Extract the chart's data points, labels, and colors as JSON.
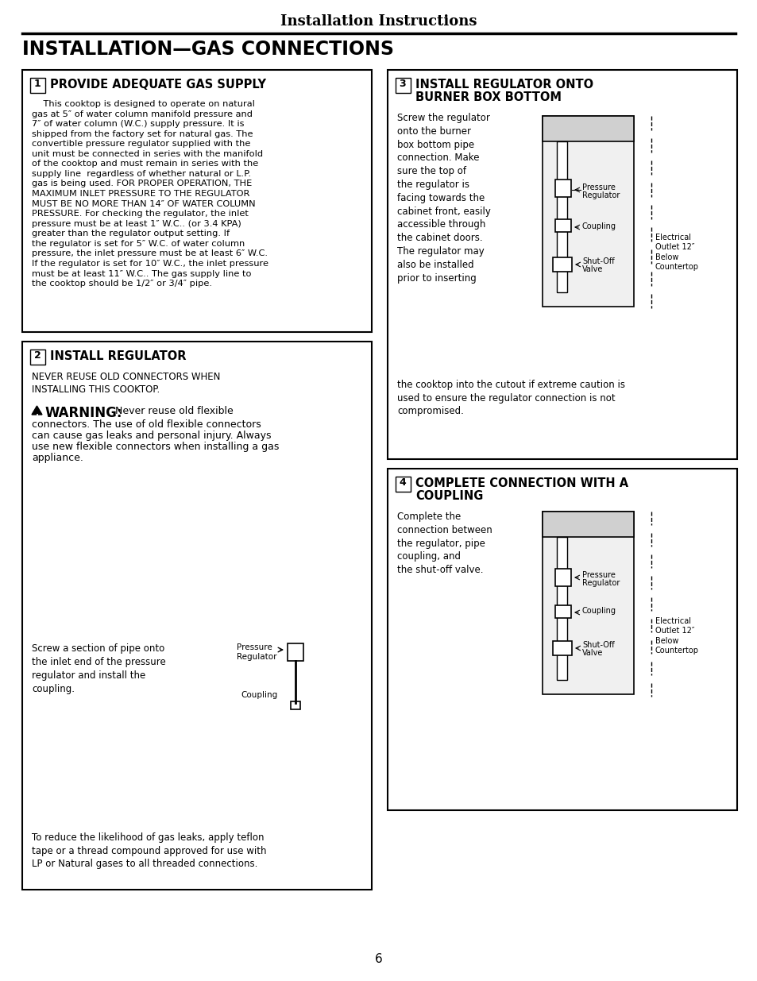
{
  "page_title": "Installation Instructions",
  "section_title": "INSTALLATION—GAS CONNECTIONS",
  "background_color": "#ffffff",
  "text_color": "#000000",
  "box1_number": "1",
  "box1_title": "PROVIDE ADEQUATE GAS SUPPLY",
  "box1_body": "    This cooktop is designed to operate on natural\ngas at 5″ of water column manifold pressure and\n7″ of water column (W.C.) supply pressure. It is\nshipped from the factory set for natural gas. The\nconvertible pressure regulator supplied with the\nunit must be connected in series with the manifold\nof the cooktop and must remain in series with the\nsupply line  regardless of whether natural or L.P.\ngas is being used. FOR PROPER OPERATION, THE\nMAXIMUM INLET PRESSURE TO THE REGULATOR\nMUST BE NO MORE THAN 14″ OF WATER COLUMN\nPRESSURE. For checking the regulator, the inlet\npressure must be at least 1″ W.C.. (or 3.4 KPA)\ngreater than the regulator output setting. If\nthe regulator is set for 5″ W.C. of water column\npressure, the inlet pressure must be at least 6″ W.C.\nIf the regulator is set for 10″ W.C., the inlet pressure\nmust be at least 11″ W.C.. The gas supply line to\nthe cooktop should be 1/2″ or 3/4″ pipe.",
  "box2_number": "2",
  "box2_title": "INSTALL REGULATOR",
  "box2_sub": "NEVER REUSE OLD CONNECTORS WHEN\nINSTALLING THIS COOKTOP.",
  "box2_screw_text": "Screw a section of pipe onto\nthe inlet end of the pressure\nregulator and install the\ncoupling.",
  "box2_bottom": "To reduce the likelihood of gas leaks, apply teflon\ntape or a thread compound approved for use with\nLP or Natural gases to all threaded connections.",
  "box3_number": "3",
  "box3_title1": "INSTALL REGULATOR ONTO",
  "box3_title2": "BURNER BOX BOTTOM",
  "box3_body": "Screw the regulator\nonto the burner\nbox bottom pipe\nconnection. Make\nsure the top of\nthe regulator is\nfacing towards the\ncabinet front, easily\naccessible through\nthe cabinet doors.\nThe regulator may\nalso be installed\nprior to inserting",
  "box3_body2": "the cooktop into the cutout if extreme caution is\nused to ensure the regulator connection is not\ncompromised.",
  "box4_number": "4",
  "box4_title1": "COMPLETE CONNECTION WITH A",
  "box4_title2": "COUPLING",
  "box4_body": "Complete the\nconnection between\nthe regulator, pipe\ncoupling, and\nthe shut-off valve.",
  "page_number": "6"
}
